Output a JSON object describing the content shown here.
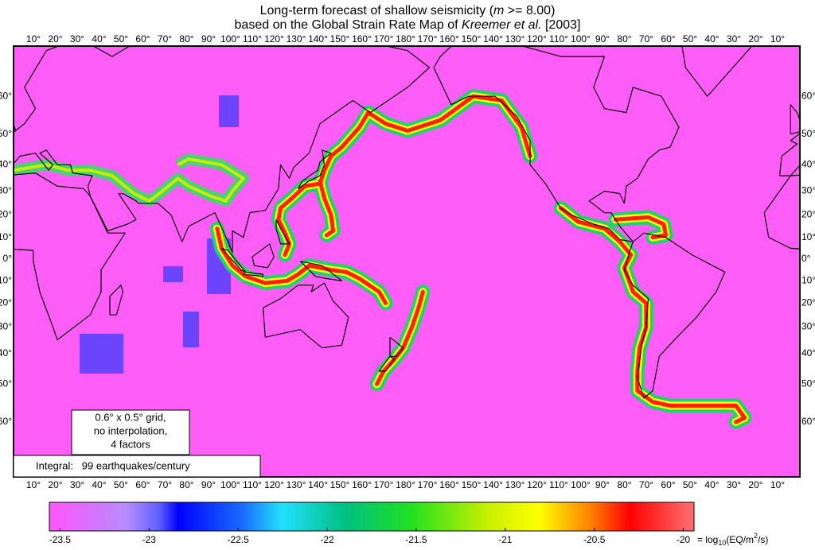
{
  "title": {
    "line1": [
      "Long-term forecast of shallow seismicity (",
      "m",
      " >= 8.00)"
    ],
    "line2": [
      "based on the Global Strain Rate Map of ",
      "Kreemer et al.",
      " [2003]"
    ]
  },
  "longitude_labels": [
    "10°",
    "20°",
    "30°",
    "40°",
    "50°",
    "60°",
    "70°",
    "80°",
    "90°",
    "100°",
    "110°",
    "120°",
    "130°",
    "140°",
    "150°",
    "160°",
    "170°",
    "180°",
    "170°",
    "160°",
    "150°",
    "140°",
    "130°",
    "120°",
    "110°",
    "100°",
    "90°",
    "80°",
    "70°",
    "60°",
    "50°",
    "40°",
    "30°",
    "20°",
    "10°"
  ],
  "latitude_labels": [
    "60°",
    "50°",
    "40°",
    "30°",
    "20°",
    "10°",
    "0°",
    "10°",
    "20°",
    "30°",
    "40°",
    "50°",
    "60°"
  ],
  "grid_note": [
    "0.6° x 0.5°  grid,",
    "no interpolation,",
    "4 factors"
  ],
  "integral": "Integral:   99 earthquakes/century",
  "colorbar": {
    "lim": [
      -23.56,
      -19.94
    ],
    "ticks": [
      -23.5,
      -23,
      -22.5,
      -22,
      -21.5,
      -21,
      -20.5,
      -20
    ],
    "unit": [
      "= log",
      "10",
      "(EQ/m",
      "2",
      "/s)"
    ]
  }
}
